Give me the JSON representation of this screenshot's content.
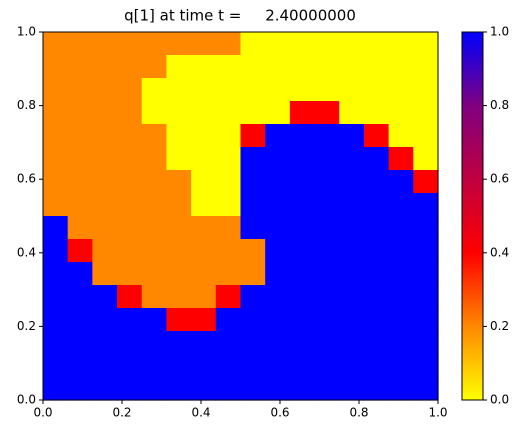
{
  "chart_data": {
    "type": "heatmap",
    "title": "q[1] at time t =     2.40000000",
    "xlim": [
      0,
      1
    ],
    "ylim": [
      0,
      1
    ],
    "xticks": [
      {
        "value": 0,
        "label": "0.0"
      },
      0.2,
      0.4,
      0.6,
      0.8,
      {
        "value": 1,
        "label": "1.0"
      }
    ],
    "yticks": [
      {
        "value": 0,
        "label": "0.0"
      },
      0.2,
      0.4,
      0.6,
      0.8,
      {
        "value": 1,
        "label": "1.0"
      }
    ],
    "clim": [
      0,
      1
    ],
    "cticks": [
      {
        "value": 0,
        "label": "0.0"
      },
      0.2,
      0.4,
      0.6,
      0.8,
      {
        "value": 1,
        "label": "1.0"
      }
    ],
    "colormap": [
      {
        "value": 0,
        "color": "#ffff00"
      },
      {
        "value": 0.2,
        "color": "#ff8800"
      },
      {
        "value": 0.4,
        "color": "#ff0000"
      },
      {
        "value": 0.8,
        "color": "#800080"
      },
      {
        "value": 1,
        "color": "#0000ff"
      }
    ],
    "z": [
      [
        0.2,
        0.2,
        0.2,
        0.2,
        0.2,
        0.2,
        0.2,
        0.2,
        0,
        0,
        0,
        0,
        0,
        0,
        0,
        0
      ],
      [
        0.2,
        0.2,
        0.2,
        0.2,
        0.2,
        0,
        0,
        0,
        0,
        0,
        0,
        0,
        0,
        0,
        0,
        0
      ],
      [
        0.2,
        0.2,
        0.2,
        0.2,
        0,
        0,
        0,
        0,
        0,
        0,
        0,
        0,
        0,
        0,
        0,
        0
      ],
      [
        0.2,
        0.2,
        0.2,
        0.2,
        0,
        0,
        0,
        0,
        0,
        0,
        0.4,
        0.4,
        0,
        0,
        0,
        0
      ],
      [
        0.2,
        0.2,
        0.2,
        0.2,
        0.2,
        0,
        0,
        0,
        0.4,
        1,
        1,
        1,
        1,
        0.4,
        0,
        0
      ],
      [
        0.2,
        0.2,
        0.2,
        0.2,
        0.2,
        0,
        0,
        0,
        1,
        1,
        1,
        1,
        1,
        1,
        0.4,
        0
      ],
      [
        0.2,
        0.2,
        0.2,
        0.2,
        0.2,
        0.2,
        0,
        0,
        1,
        1,
        1,
        1,
        1,
        1,
        1,
        0.4
      ],
      [
        0.2,
        0.2,
        0.2,
        0.2,
        0.2,
        0.2,
        0,
        0,
        1,
        1,
        1,
        1,
        1,
        1,
        1,
        1
      ],
      [
        1,
        0.2,
        0.2,
        0.2,
        0.2,
        0.2,
        0.2,
        0.2,
        1,
        1,
        1,
        1,
        1,
        1,
        1,
        1
      ],
      [
        1,
        0.4,
        0.2,
        0.2,
        0.2,
        0.2,
        0.2,
        0.2,
        0.2,
        1,
        1,
        1,
        1,
        1,
        1,
        1
      ],
      [
        1,
        1,
        0.2,
        0.2,
        0.2,
        0.2,
        0.2,
        0.2,
        0.2,
        1,
        1,
        1,
        1,
        1,
        1,
        1
      ],
      [
        1,
        1,
        1,
        0.4,
        0.2,
        0.2,
        0.2,
        0.4,
        1,
        1,
        1,
        1,
        1,
        1,
        1,
        1
      ],
      [
        1,
        1,
        1,
        1,
        1,
        0.4,
        0.4,
        1,
        1,
        1,
        1,
        1,
        1,
        1,
        1,
        1
      ],
      [
        1,
        1,
        1,
        1,
        1,
        1,
        1,
        1,
        1,
        1,
        1,
        1,
        1,
        1,
        1,
        1
      ],
      [
        1,
        1,
        1,
        1,
        1,
        1,
        1,
        1,
        1,
        1,
        1,
        1,
        1,
        1,
        1,
        1
      ],
      [
        1,
        1,
        1,
        1,
        1,
        1,
        1,
        1,
        1,
        1,
        1,
        1,
        1,
        1,
        1,
        1
      ]
    ]
  }
}
